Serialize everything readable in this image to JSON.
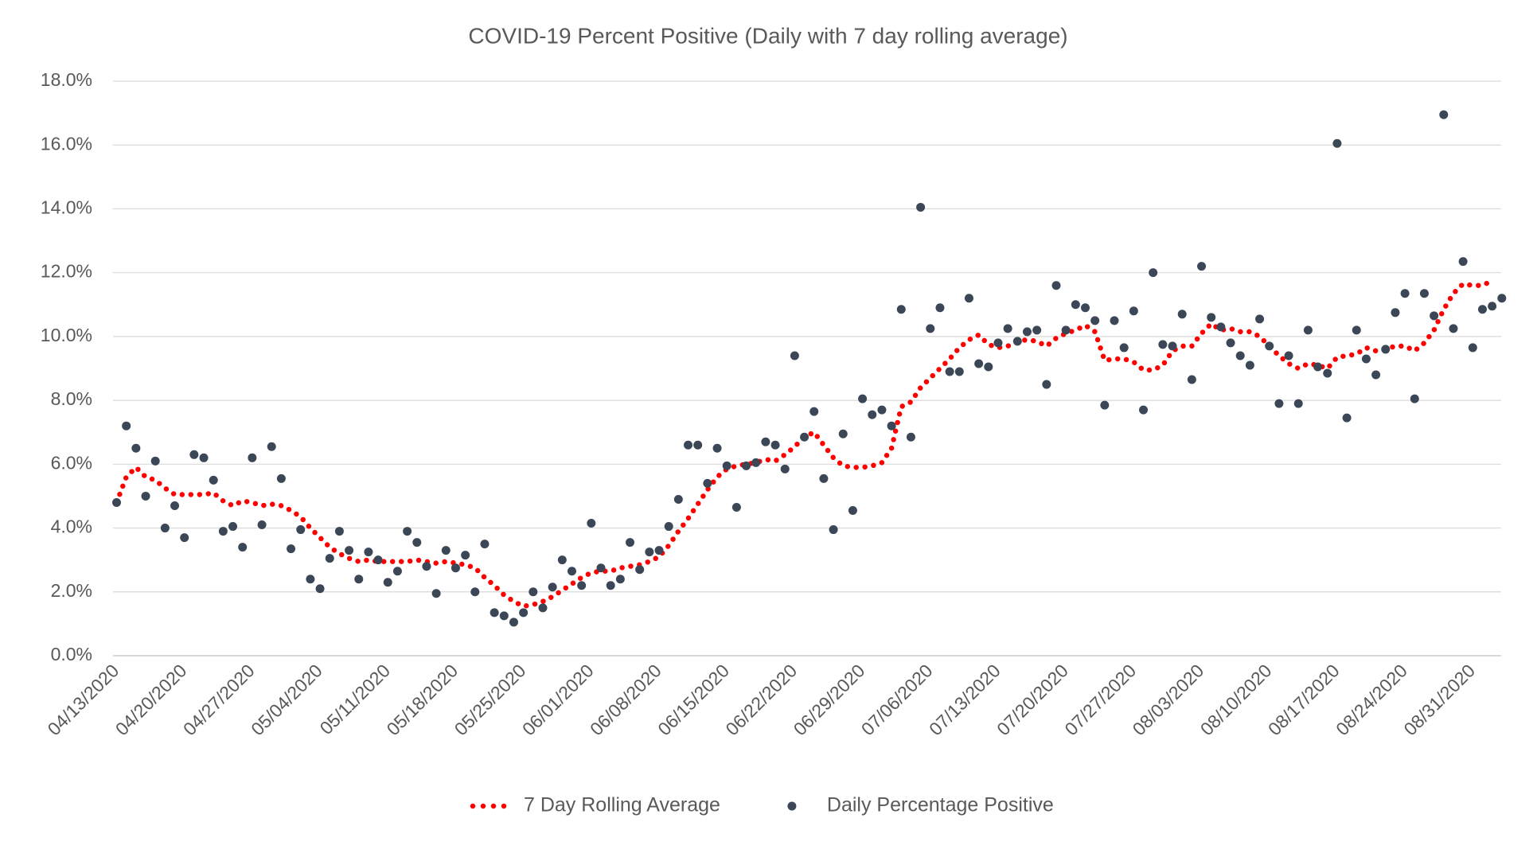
{
  "chart_data": {
    "type": "line",
    "title": "COVID-19 Percent Positive (Daily with 7 day rolling average)",
    "categories": [
      "04/13/2020",
      null,
      null,
      null,
      null,
      null,
      null,
      "04/20/2020",
      null,
      null,
      null,
      null,
      null,
      null,
      "04/27/2020",
      null,
      null,
      null,
      null,
      null,
      null,
      "05/04/2020",
      null,
      null,
      null,
      null,
      null,
      null,
      "05/11/2020",
      null,
      null,
      null,
      null,
      null,
      null,
      "05/18/2020",
      null,
      null,
      null,
      null,
      null,
      null,
      "05/25/2020",
      null,
      null,
      null,
      null,
      null,
      null,
      "06/01/2020",
      null,
      null,
      null,
      null,
      null,
      null,
      "06/08/2020",
      null,
      null,
      null,
      null,
      null,
      null,
      "06/15/2020",
      null,
      null,
      null,
      null,
      null,
      null,
      "06/22/2020",
      null,
      null,
      null,
      null,
      null,
      null,
      "06/29/2020",
      null,
      null,
      null,
      null,
      null,
      null,
      "07/06/2020",
      null,
      null,
      null,
      null,
      null,
      null,
      "07/13/2020",
      null,
      null,
      null,
      null,
      null,
      null,
      "07/20/2020",
      null,
      null,
      null,
      null,
      null,
      null,
      "07/27/2020",
      null,
      null,
      null,
      null,
      null,
      null,
      "08/03/2020",
      null,
      null,
      null,
      null,
      null,
      null,
      "08/10/2020",
      null,
      null,
      null,
      null,
      null,
      null,
      "08/17/2020",
      null,
      null,
      null,
      null,
      null,
      null,
      "08/24/2020",
      null,
      null,
      null,
      null,
      null,
      null,
      "08/31/2020",
      null,
      null,
      null
    ],
    "series": [
      {
        "name": "7 Day Rolling Average",
        "color": "#ff0000",
        "style": "dotted",
        "values": [
          4.8,
          5.6,
          5.9,
          5.6,
          5.5,
          5.25,
          5.05,
          5.05,
          5.05,
          5.05,
          5.1,
          4.85,
          4.7,
          4.85,
          4.8,
          4.7,
          4.75,
          4.7,
          4.55,
          4.35,
          4.0,
          3.7,
          3.4,
          3.2,
          3.05,
          2.95,
          3.0,
          2.95,
          2.95,
          2.95,
          2.95,
          3.0,
          2.95,
          2.9,
          2.95,
          2.9,
          2.85,
          2.75,
          2.45,
          2.2,
          1.9,
          1.7,
          1.55,
          1.6,
          1.7,
          1.85,
          2.05,
          2.25,
          2.45,
          2.6,
          2.65,
          2.65,
          2.75,
          2.8,
          2.85,
          2.95,
          3.1,
          3.45,
          3.9,
          4.3,
          4.75,
          5.2,
          5.6,
          5.85,
          5.95,
          6.0,
          6.05,
          6.15,
          6.1,
          6.3,
          6.55,
          6.85,
          7.0,
          6.6,
          6.2,
          5.95,
          5.9,
          5.9,
          5.95,
          6.05,
          6.5,
          7.8,
          7.95,
          8.4,
          8.7,
          9.0,
          9.3,
          9.65,
          9.9,
          10.05,
          9.75,
          9.65,
          9.7,
          9.85,
          9.9,
          9.85,
          9.7,
          9.95,
          10.1,
          10.2,
          10.35,
          10.15,
          9.25,
          9.3,
          9.3,
          9.2,
          8.95,
          8.95,
          9.1,
          9.55,
          9.7,
          9.7,
          10.1,
          10.4,
          10.2,
          10.25,
          10.15,
          10.15,
          10.0,
          9.7,
          9.4,
          9.15,
          9.0,
          9.15,
          9.1,
          9.0,
          9.35,
          9.4,
          9.45,
          9.65,
          9.55,
          9.6,
          9.7,
          9.7,
          9.55,
          9.8,
          10.2,
          10.85,
          11.35,
          11.65,
          11.6,
          11.6,
          11.75,
          null
        ]
      },
      {
        "name": "Daily Percentage Positive",
        "color": "#3b4656",
        "style": "markers",
        "values": [
          4.8,
          7.2,
          6.5,
          5.0,
          6.1,
          4.0,
          4.7,
          3.7,
          6.3,
          6.2,
          5.5,
          3.9,
          4.05,
          3.4,
          6.2,
          4.1,
          6.55,
          5.55,
          3.35,
          3.95,
          2.4,
          2.1,
          3.05,
          3.9,
          3.3,
          2.4,
          3.25,
          3.0,
          2.3,
          2.65,
          3.9,
          3.55,
          2.8,
          1.95,
          3.3,
          2.75,
          3.15,
          2.0,
          3.5,
          1.35,
          1.25,
          1.05,
          1.35,
          2.0,
          1.5,
          2.15,
          3.0,
          2.65,
          2.2,
          4.15,
          2.75,
          2.2,
          2.4,
          3.55,
          2.7,
          3.25,
          3.3,
          4.05,
          4.9,
          6.6,
          6.6,
          5.4,
          6.5,
          5.95,
          4.65,
          5.95,
          6.05,
          6.7,
          6.6,
          5.85,
          9.4,
          6.85,
          7.65,
          5.55,
          3.95,
          6.95,
          4.55,
          8.05,
          7.55,
          7.7,
          7.2,
          10.85,
          6.85,
          14.05,
          10.25,
          10.9,
          8.9,
          8.9,
          11.2,
          9.15,
          9.05,
          9.8,
          10.25,
          9.85,
          10.15,
          10.2,
          8.5,
          11.6,
          10.2,
          11.0,
          10.9,
          10.5,
          7.85,
          10.5,
          9.65,
          10.8,
          7.7,
          12.0,
          9.75,
          9.7,
          10.7,
          8.65,
          12.2,
          10.6,
          10.3,
          9.8,
          9.4,
          9.1,
          10.55,
          9.7,
          7.9,
          9.4,
          7.9,
          10.2,
          9.05,
          8.85,
          16.05,
          7.45,
          10.2,
          9.3,
          8.8,
          9.6,
          10.75,
          11.35,
          8.05,
          11.35,
          10.65,
          16.95,
          10.25,
          12.35,
          9.65,
          10.85,
          10.95,
          11.2
        ]
      }
    ],
    "ylim": [
      0,
      18
    ],
    "yticks": [
      {
        "value": 0,
        "label": "0.0%"
      },
      {
        "value": 2,
        "label": "2.0%"
      },
      {
        "value": 4,
        "label": "4.0%"
      },
      {
        "value": 6,
        "label": "6.0%"
      },
      {
        "value": 8,
        "label": "8.0%"
      },
      {
        "value": 10,
        "label": "10.0%"
      },
      {
        "value": 12,
        "label": "12.0%"
      },
      {
        "value": 14,
        "label": "14.0%"
      },
      {
        "value": 16,
        "label": "16.0%"
      },
      {
        "value": 18,
        "label": "18.0%"
      }
    ],
    "grid": true,
    "legend": "bottom"
  }
}
